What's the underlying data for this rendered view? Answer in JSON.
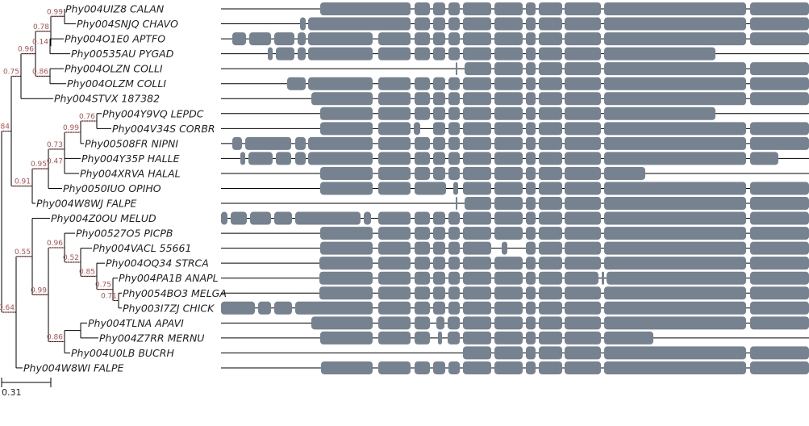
{
  "colors": {
    "branch": "#000000",
    "support_guide": "#c05050",
    "support_text": "#b05050",
    "block": "#778290",
    "line": "#000000"
  },
  "scale": {
    "label": "0.31"
  },
  "leaves": [
    {
      "label": "Phy004UIZ8 CALAN"
    },
    {
      "label": "Phy004SNJQ CHAVO"
    },
    {
      "label": "Phy004O1E0 APTFO"
    },
    {
      "label": "Phy00535AU PYGAD"
    },
    {
      "label": "Phy004OLZN COLLI"
    },
    {
      "label": "Phy004OLZM COLLI"
    },
    {
      "label": "Phy004STVX 187382"
    },
    {
      "label": "Phy004Y9VQ LEPDC"
    },
    {
      "label": "Phy004V34S CORBR"
    },
    {
      "label": "Phy00508FR NIPNI"
    },
    {
      "label": "Phy004Y35P HALLE"
    },
    {
      "label": "Phy004XRVA HALAL"
    },
    {
      "label": "Phy0050IUO OPIHO"
    },
    {
      "label": "Phy004W8WJ FALPE"
    },
    {
      "label": "Phy004Z0OU MELUD"
    },
    {
      "label": "Phy00527O5 PICPB"
    },
    {
      "label": "Phy004VACL 55661"
    },
    {
      "label": "Phy004OQ34 STRCA"
    },
    {
      "label": "Phy004PA1B ANAPL"
    },
    {
      "label": "Phy0054BO3 MELGA"
    },
    {
      "label": "Phy003I7ZJ CHICK"
    },
    {
      "label": "Phy004TLNA APAVI"
    },
    {
      "label": "Phy004Z7RR MERNU"
    },
    {
      "label": "Phy004U0LB BUCRH"
    },
    {
      "label": "Phy004W8WI FALPE"
    }
  ],
  "supports": [
    {
      "label": "0.84"
    },
    {
      "label": "0.75"
    },
    {
      "label": "0.96"
    },
    {
      "label": "0.78"
    },
    {
      "label": "0.99"
    },
    {
      "label": "0.14"
    },
    {
      "label": "0.86"
    },
    {
      "label": "0.91"
    },
    {
      "label": "0.95"
    },
    {
      "label": "0.73"
    },
    {
      "label": "0.99"
    },
    {
      "label": "0.76"
    },
    {
      "label": "0.47"
    },
    {
      "label": "0.64"
    },
    {
      "label": "0.55"
    },
    {
      "label": "0.99"
    },
    {
      "label": "0.96"
    },
    {
      "label": "0.52"
    },
    {
      "label": "0.85"
    },
    {
      "label": "0.75"
    },
    {
      "label": "0.71"
    },
    {
      "label": "0.86"
    }
  ]
}
